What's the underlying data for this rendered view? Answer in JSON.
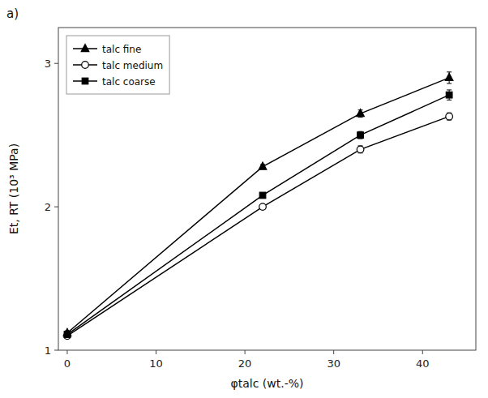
{
  "chart_data": {
    "type": "line",
    "title": "a)",
    "x_label": "φtalc (wt.-%)",
    "y_label": "Et, RT (10³ MPa)",
    "x": [
      0,
      22,
      33,
      43
    ],
    "xlim": [
      -1,
      46
    ],
    "ylim": [
      1.0,
      3.25
    ],
    "xticks": [
      0,
      10,
      20,
      30,
      40
    ],
    "yticks": [
      1,
      2,
      3
    ],
    "grid": false,
    "legend": "upper left",
    "series": [
      {
        "name": "talc fine",
        "color": "black",
        "marker": "triangle",
        "line_style": "solid",
        "values": [
          1.12,
          2.28,
          2.65,
          2.9
        ],
        "yerr": [
          0.015,
          0.015,
          0.025,
          0.04
        ]
      },
      {
        "name": "talc medium",
        "color": "black",
        "marker": "open-circle",
        "line_style": "solid",
        "values": [
          1.1,
          2.0,
          2.4,
          2.63
        ],
        "yerr": [
          0.015,
          0.015,
          0.025,
          0.025
        ]
      },
      {
        "name": "talc coarse",
        "color": "black",
        "marker": "square",
        "line_style": "solid",
        "values": [
          1.11,
          2.08,
          2.5,
          2.78
        ],
        "yerr": [
          0.015,
          0.015,
          0.025,
          0.035
        ]
      }
    ]
  }
}
